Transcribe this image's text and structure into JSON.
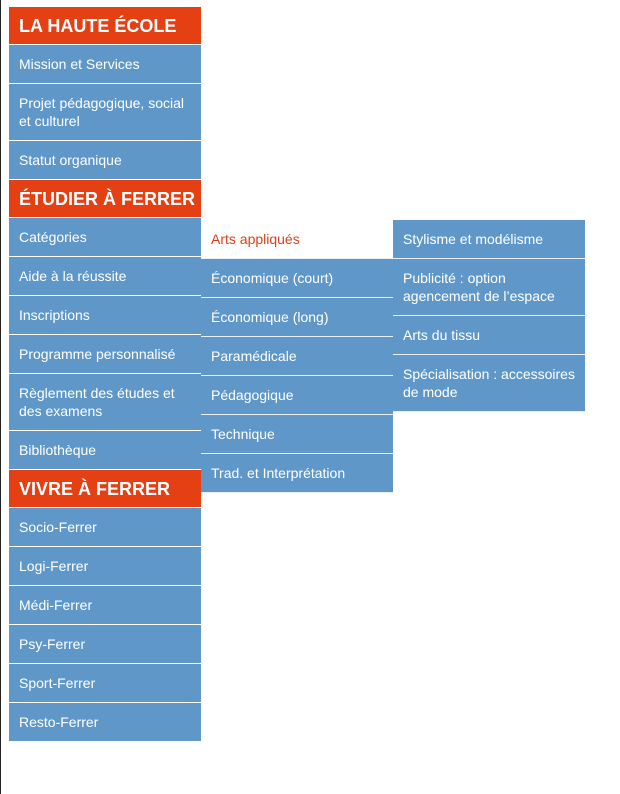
{
  "menu": {
    "sections": [
      {
        "heading": "LA HAUTE ÉCOLE",
        "items": [
          "Mission et Services",
          "Projet pédagogique, social et culturel",
          "Statut organique"
        ]
      },
      {
        "heading": "ÉTUDIER À FERRER",
        "items": [
          "Catégories",
          "Aide à la réussite",
          "Inscriptions",
          "Programme personnalisé",
          "Règlement des études et des examens",
          "Bibliothèque"
        ]
      },
      {
        "heading": "VIVRE À FERRER",
        "items": [
          "Socio-Ferrer",
          "Logi-Ferrer",
          "Médi-Ferrer",
          "Psy-Ferrer",
          "Sport-Ferrer",
          "Resto-Ferrer"
        ]
      }
    ]
  },
  "categories_submenu": {
    "items": [
      "Arts appliqués",
      "Économique (court)",
      "Économique (long)",
      "Paramédicale",
      "Pédagogique",
      "Technique",
      "Trad. et Interprétation"
    ],
    "active_item": "Arts appliqués"
  },
  "arts_appliques_submenu": {
    "items": [
      "Stylisme et modélisme",
      "Publicité : option agencement de l’espace",
      "Arts du tissu",
      "Spécialisation : accessoires de mode"
    ]
  },
  "colors": {
    "heading": "#e53f14",
    "item": "#5f97c9",
    "active_text": "#d9411a"
  }
}
